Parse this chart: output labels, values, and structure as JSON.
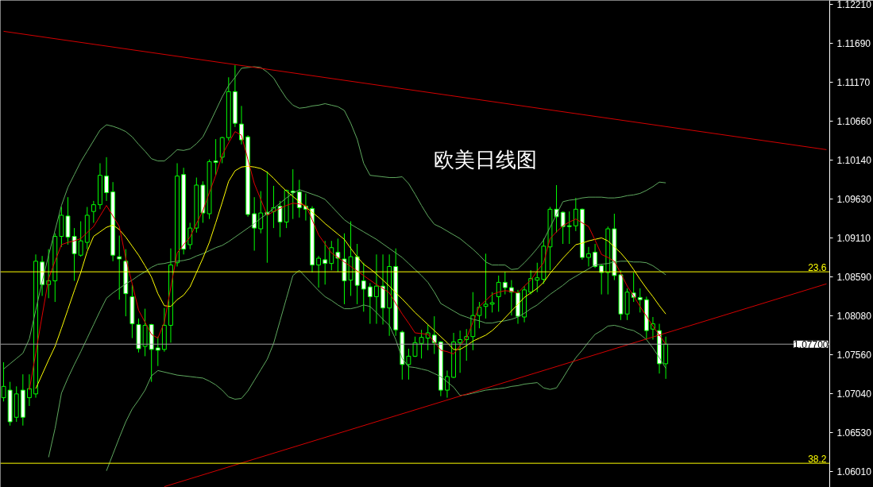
{
  "chart_data": {
    "type": "candlestick",
    "title": "欧美日线图",
    "color": "#00ff00",
    "categories": [
      null,
      null,
      null,
      null,
      null,
      null,
      null,
      null,
      null,
      null,
      null,
      null,
      null,
      null,
      null,
      null,
      null,
      null,
      null,
      null,
      null,
      null,
      null,
      null,
      null,
      null,
      null,
      null,
      null,
      null,
      null,
      null,
      null,
      null,
      null,
      null,
      null,
      null,
      null,
      null,
      null,
      null,
      null,
      null,
      null,
      null,
      null,
      null,
      null,
      null,
      null,
      null,
      null,
      null,
      null,
      null,
      null,
      null,
      null,
      null,
      null,
      null,
      null,
      null,
      null,
      null,
      null,
      null,
      null,
      null,
      null,
      null,
      null,
      null,
      null,
      null,
      null,
      null,
      null,
      null,
      null,
      null,
      null,
      null,
      null,
      null,
      null,
      null,
      null,
      null,
      null,
      null,
      null,
      null,
      null,
      null,
      null,
      null,
      null,
      null,
      null,
      null,
      null,
      null,
      null,
      null,
      null,
      null,
      null,
      null,
      null,
      null,
      null,
      null,
      null,
      null,
      null,
      null,
      null,
      null,
      null,
      null,
      null,
      null,
      null,
      null,
      null,
      null,
      null
    ],
    "ohlc": [
      [
        1.0699,
        1.0746,
        1.0694,
        1.0714
      ],
      [
        1.0709,
        1.072,
        1.0662,
        1.0667
      ],
      [
        1.0673,
        1.0714,
        1.0667,
        1.0704
      ],
      [
        1.0709,
        1.073,
        1.0662,
        1.0673
      ],
      [
        1.0699,
        1.073,
        1.0688,
        1.0711
      ],
      [
        1.0704,
        1.0889,
        1.0699,
        1.088
      ],
      [
        1.0879,
        1.0887,
        1.0834,
        1.0849
      ],
      [
        1.0849,
        1.0896,
        1.0831,
        1.0854
      ],
      [
        1.0854,
        1.0917,
        1.0826,
        1.0913
      ],
      [
        1.0913,
        1.0952,
        1.0899,
        1.0941
      ],
      [
        1.094,
        1.0965,
        1.0902,
        1.0912
      ],
      [
        1.0913,
        1.0924,
        1.0854,
        1.089
      ],
      [
        1.0888,
        1.0933,
        1.0886,
        1.0907
      ],
      [
        1.0905,
        1.0952,
        1.0896,
        1.0941
      ],
      [
        1.0946,
        1.096,
        1.0931,
        1.0955
      ],
      [
        1.0955,
        1.101,
        1.0949,
        1.0994
      ],
      [
        1.0993,
        1.1018,
        1.096,
        1.0971
      ],
      [
        1.0972,
        1.0985,
        1.088,
        1.0888
      ],
      [
        1.0886,
        1.0914,
        1.0829,
        1.0883
      ],
      [
        1.088,
        1.0896,
        1.0807,
        1.0837
      ],
      [
        1.0833,
        1.0849,
        1.0778,
        1.0797
      ],
      [
        1.0796,
        1.0804,
        1.0759,
        1.0764
      ],
      [
        1.0767,
        1.0817,
        1.0754,
        1.0795
      ],
      [
        1.0796,
        1.0797,
        1.072,
        1.0763
      ],
      [
        1.0765,
        1.078,
        1.0741,
        1.0762
      ],
      [
        1.0763,
        1.0818,
        1.076,
        1.0795
      ],
      [
        1.0795,
        1.0897,
        1.0772,
        1.0875
      ],
      [
        1.0878,
        1.101,
        1.0873,
        1.0993
      ],
      [
        1.0995,
        1.1004,
        1.0889,
        1.0896
      ],
      [
        1.0902,
        1.0931,
        1.0896,
        1.0924
      ],
      [
        1.0924,
        1.0991,
        1.0918,
        1.0981
      ],
      [
        1.0981,
        1.0986,
        1.0931,
        1.0944
      ],
      [
        1.0943,
        1.1015,
        1.0936,
        1.1012
      ],
      [
        1.1013,
        1.1042,
        1.0994,
        1.1011
      ],
      [
        1.1018,
        1.1045,
        1.101,
        1.1044
      ],
      [
        1.1044,
        1.1124,
        1.104,
        1.1105
      ],
      [
        1.1105,
        1.114,
        1.1058,
        1.1063
      ],
      [
        1.1062,
        1.1086,
        1.1035,
        1.1041
      ],
      [
        1.1045,
        1.1047,
        1.0939,
        1.0942
      ],
      [
        1.0943,
        1.0965,
        1.0894,
        1.0924
      ],
      [
        1.0923,
        1.0973,
        1.0917,
        1.0944
      ],
      [
        1.0945,
        1.0999,
        1.0878,
        1.0942
      ],
      [
        1.0946,
        1.098,
        1.0924,
        1.0951
      ],
      [
        1.0953,
        1.096,
        1.0912,
        1.0932
      ],
      [
        1.0932,
        1.0975,
        1.0924,
        1.0974
      ],
      [
        1.0973,
        1.1002,
        1.0936,
        1.0971
      ],
      [
        1.0972,
        1.0988,
        1.0938,
        1.0951
      ],
      [
        1.0953,
        1.097,
        1.0934,
        1.0949
      ],
      [
        1.095,
        1.0953,
        1.0865,
        1.0875
      ],
      [
        1.0875,
        1.0887,
        1.0845,
        1.0884
      ],
      [
        1.0882,
        1.0907,
        1.0849,
        1.0877
      ],
      [
        1.0877,
        1.0907,
        1.0868,
        1.0898
      ],
      [
        1.0892,
        1.091,
        1.0866,
        1.0884
      ],
      [
        1.0883,
        1.0917,
        1.0823,
        1.0854
      ],
      [
        1.0855,
        1.0933,
        1.0834,
        1.0886
      ],
      [
        1.0886,
        1.0903,
        1.0823,
        1.0848
      ],
      [
        1.0854,
        1.0878,
        1.0813,
        1.0843
      ],
      [
        1.0846,
        1.0851,
        1.0797,
        1.0833
      ],
      [
        1.0833,
        1.0889,
        1.0797,
        1.0847
      ],
      [
        1.0847,
        1.0889,
        1.0796,
        1.0818
      ],
      [
        1.0818,
        1.0889,
        1.0781,
        1.0873
      ],
      [
        1.0873,
        1.0897,
        1.0781,
        1.0789
      ],
      [
        1.0786,
        1.0788,
        1.0723,
        1.0743
      ],
      [
        1.0743,
        1.0764,
        1.0723,
        1.0754
      ],
      [
        1.0754,
        1.078,
        1.0753,
        1.0772
      ],
      [
        1.0771,
        1.0789,
        1.0751,
        1.0779
      ],
      [
        1.0778,
        1.0796,
        1.0762,
        1.0785
      ],
      [
        1.0782,
        1.0807,
        1.0757,
        1.0772
      ],
      [
        1.0773,
        1.0774,
        1.0701,
        1.0709
      ],
      [
        1.0709,
        1.0735,
        1.0699,
        1.0727
      ],
      [
        1.0726,
        1.0785,
        1.0725,
        1.0773
      ],
      [
        1.0772,
        1.0788,
        1.0732,
        1.0776
      ],
      [
        1.0776,
        1.079,
        1.0748,
        1.078
      ],
      [
        1.078,
        1.0839,
        1.0762,
        1.0808
      ],
      [
        1.0808,
        1.0826,
        1.0791,
        1.0819
      ],
      [
        1.082,
        1.089,
        1.0804,
        1.0823
      ],
      [
        1.0823,
        1.0839,
        1.0812,
        1.0825
      ],
      [
        1.0833,
        1.0861,
        1.0813,
        1.0852
      ],
      [
        1.0852,
        1.0866,
        1.0836,
        1.0845
      ],
      [
        1.0845,
        1.0855,
        1.0808,
        1.0839
      ],
      [
        1.0838,
        1.0842,
        1.0797,
        1.0807
      ],
      [
        1.0806,
        1.0847,
        1.0799,
        1.0842
      ],
      [
        1.0839,
        1.0868,
        1.0836,
        1.0857
      ],
      [
        1.0855,
        1.0878,
        1.0839,
        1.0858
      ],
      [
        1.0856,
        1.091,
        1.085,
        1.09
      ],
      [
        1.0899,
        1.0952,
        1.0868,
        1.0949
      ],
      [
        1.0949,
        1.0981,
        1.0918,
        1.0939
      ],
      [
        1.0945,
        1.0946,
        1.0903,
        1.0926
      ],
      [
        1.0927,
        1.0946,
        1.0903,
        1.0926
      ],
      [
        1.0927,
        1.0964,
        1.092,
        1.0949
      ],
      [
        1.0949,
        1.095,
        1.0882,
        1.0885
      ],
      [
        1.0885,
        1.0899,
        1.0873,
        1.089
      ],
      [
        1.0892,
        1.0903,
        1.0871,
        1.0873
      ],
      [
        1.0874,
        1.0876,
        1.0836,
        1.0865
      ],
      [
        1.0865,
        1.0926,
        1.0836,
        1.0923
      ],
      [
        1.0923,
        1.0943,
        1.0855,
        1.0861
      ],
      [
        1.0862,
        1.0868,
        1.0802,
        1.081
      ],
      [
        1.081,
        1.0844,
        1.0802,
        1.0839
      ],
      [
        1.0838,
        1.0865,
        1.0826,
        1.0832
      ],
      [
        1.0832,
        1.0844,
        1.0812,
        1.0829
      ],
      [
        1.0829,
        1.0833,
        1.0776,
        1.0788
      ],
      [
        1.079,
        1.0806,
        1.0776,
        1.0797
      ],
      [
        1.0788,
        1.0797,
        1.0731,
        1.0744
      ],
      [
        1.0744,
        1.078,
        1.0724,
        1.077
      ],
      null,
      null,
      null,
      null,
      null,
      null,
      null,
      null,
      null,
      null,
      null,
      null,
      null,
      null,
      null,
      null,
      null,
      null,
      null,
      null,
      null,
      null,
      null,
      null,
      null
    ],
    "series": [
      {
        "type": "line",
        "color": "#5fa85f",
        "values": [
          1.0737,
          1.0744,
          1.0751,
          1.0758,
          1.0777,
          1.0815,
          1.0853,
          1.0888,
          1.0921,
          1.0954,
          1.0978,
          1.0995,
          1.1012,
          1.1026,
          1.104,
          1.1054,
          1.1061,
          1.1059,
          1.1056,
          1.1052,
          1.1045,
          1.1035,
          1.1026,
          1.1016,
          1.1013,
          1.1013,
          1.102,
          1.1028,
          1.1027,
          1.1029,
          1.1036,
          1.1045,
          1.1062,
          1.108,
          1.1098,
          1.1113,
          1.1124,
          1.1136,
          1.1137,
          1.1138,
          1.1137,
          1.1131,
          1.1123,
          1.1109,
          1.1096,
          1.1087,
          1.1083,
          1.1084,
          1.1086,
          1.1087,
          1.1089,
          1.1087,
          1.1085,
          1.108,
          1.1063,
          1.1042,
          1.101,
          1.0994,
          1.0993,
          1.0992,
          1.0991,
          1.0991,
          1.0992,
          1.0983,
          1.0969,
          1.0954,
          1.094,
          1.0929,
          1.0925,
          1.092,
          1.0915,
          1.091,
          1.0903,
          1.0896,
          1.0888,
          1.0879,
          1.0875,
          1.0875,
          1.0875,
          1.0869,
          1.087,
          1.0878,
          1.0887,
          1.0897,
          1.0908,
          1.0925,
          1.0942,
          1.0959,
          1.0961,
          1.0962,
          1.0964,
          1.0965,
          1.0965,
          1.0965,
          1.0964,
          1.0964,
          1.0965,
          1.0967,
          1.0968,
          1.097,
          1.0974,
          1.0979,
          1.0985,
          1.0984,
          null,
          null,
          null,
          null,
          null,
          null,
          null,
          null,
          null,
          null,
          null,
          null,
          null,
          null,
          null,
          null,
          null,
          null,
          null,
          null,
          null,
          null,
          null,
          null,
          null
        ]
      },
      {
        "type": "line",
        "color": "#5fa85f",
        "values": [
          null,
          null,
          null,
          null,
          null,
          null,
          null,
          1.062,
          1.0658,
          1.0705,
          1.0725,
          1.0743,
          1.076,
          1.0778,
          1.0796,
          1.0814,
          1.0831,
          1.0838,
          1.0844,
          1.085,
          1.0855,
          1.0861,
          1.0866,
          1.0872,
          1.0876,
          1.0877,
          1.0879,
          1.088,
          1.0881,
          1.0883,
          1.0887,
          1.089,
          1.0894,
          1.0898,
          1.0901,
          1.0906,
          1.0912,
          1.0918,
          1.0924,
          1.093,
          1.0937,
          1.0943,
          1.095,
          1.0957,
          1.0964,
          1.097,
          1.0975,
          1.0972,
          1.0969,
          1.0966,
          1.0962,
          1.0953,
          1.0944,
          1.0935,
          1.0929,
          1.0924,
          1.0919,
          1.0914,
          1.0909,
          1.0903,
          1.0897,
          1.0891,
          1.0885,
          1.0877,
          1.0869,
          1.0861,
          1.0852,
          1.0839,
          1.0824,
          1.0819,
          1.0814,
          1.0809,
          1.0806,
          1.0803,
          1.0801,
          1.0798,
          1.0798,
          1.08,
          1.0801,
          1.0803,
          1.0806,
          1.0811,
          1.0817,
          1.0822,
          1.0829,
          1.0836,
          1.0842,
          1.0848,
          1.0855,
          1.086,
          1.0865,
          1.087,
          1.0875,
          1.0876,
          1.0877,
          1.0879,
          1.088,
          1.088,
          1.0879,
          1.0879,
          1.0878,
          1.0874,
          1.0868,
          1.0862,
          null,
          null,
          null,
          null,
          null,
          null,
          null,
          null,
          null,
          null,
          null,
          null,
          null,
          null,
          null,
          null,
          null,
          null,
          null,
          null,
          null,
          null,
          null,
          null,
          null
        ]
      },
      {
        "type": "line",
        "color": "#5fa85f",
        "values": [
          null,
          null,
          null,
          null,
          null,
          null,
          null,
          null,
          null,
          null,
          null,
          null,
          null,
          null,
          null,
          null,
          1.0602,
          1.0624,
          1.0646,
          1.0667,
          1.0684,
          1.0696,
          1.0709,
          1.0728,
          1.0735,
          1.0733,
          1.0731,
          1.0729,
          1.0728,
          1.0727,
          1.0726,
          1.0725,
          1.0721,
          1.0716,
          1.0709,
          1.07,
          1.0697,
          1.0698,
          1.0708,
          1.0722,
          1.0736,
          1.075,
          1.0771,
          1.0801,
          1.0831,
          1.0861,
          1.0868,
          1.0859,
          1.085,
          1.0841,
          1.0833,
          1.0828,
          1.0822,
          1.0817,
          1.0817,
          1.0819,
          1.0822,
          1.082,
          1.0812,
          1.0803,
          1.0795,
          1.0776,
          1.0751,
          1.074,
          1.0739,
          1.0737,
          1.0735,
          1.0731,
          1.0727,
          1.072,
          1.0713,
          1.0702,
          1.0703,
          1.0705,
          1.0707,
          1.0709,
          1.071,
          1.0711,
          1.0712,
          1.0714,
          1.0715,
          1.0717,
          1.0718,
          1.0719,
          1.0712,
          1.071,
          1.0712,
          1.0725,
          1.0739,
          1.0752,
          1.0762,
          1.0773,
          1.0783,
          1.0788,
          1.0794,
          1.0795,
          1.0793,
          1.079,
          1.0788,
          1.0783,
          1.0776,
          1.0765,
          1.0752,
          1.0738,
          null,
          null,
          null,
          null,
          null,
          null,
          null,
          null,
          null,
          null,
          null,
          null,
          null,
          null,
          null,
          null,
          null,
          null,
          null,
          null,
          null,
          null,
          null,
          null,
          null
        ]
      },
      {
        "type": "line",
        "color": "#ffff00",
        "values": [
          null,
          null,
          null,
          null,
          null,
          1.0711,
          1.073,
          1.0749,
          1.0767,
          1.0791,
          1.0816,
          1.0841,
          1.0865,
          1.0893,
          1.0913,
          1.0919,
          1.0925,
          1.0928,
          1.0922,
          1.0912,
          1.09,
          1.0888,
          1.0874,
          1.0859,
          1.0837,
          1.0821,
          1.082,
          1.0829,
          1.0835,
          1.0846,
          1.0865,
          1.0884,
          1.0905,
          1.0931,
          1.0958,
          1.0986,
          1.1,
          1.1005,
          1.1006,
          1.1005,
          1.1003,
          1.0998,
          1.099,
          1.0981,
          1.0973,
          1.0966,
          1.0959,
          1.0952,
          1.0945,
          1.0938,
          1.093,
          1.0923,
          1.0916,
          1.0909,
          1.0897,
          1.0886,
          1.0876,
          1.087,
          1.0863,
          1.0855,
          1.0847,
          1.0838,
          1.083,
          1.0821,
          1.0812,
          1.0804,
          1.0796,
          1.0788,
          1.078,
          1.0772,
          1.0763,
          1.0763,
          1.0768,
          1.0774,
          1.0778,
          1.0782,
          1.0788,
          1.0796,
          1.0805,
          1.0814,
          1.0823,
          1.0832,
          1.0838,
          1.0844,
          1.0852,
          1.0864,
          1.0874,
          1.0884,
          1.0893,
          1.0902,
          1.0904,
          1.0907,
          1.0909,
          1.0911,
          1.0907,
          1.0899,
          1.0891,
          1.0881,
          1.0869,
          1.0856,
          1.0844,
          1.0833,
          1.0821,
          1.081,
          null,
          null,
          null,
          null,
          null,
          null,
          null,
          null,
          null,
          null,
          null,
          null,
          null,
          null,
          null,
          null,
          null,
          null,
          null,
          null,
          null,
          null,
          null,
          null,
          null
        ]
      },
      {
        "type": "line",
        "color": "#e00000",
        "values": [
          null,
          null,
          null,
          null,
          1.0709,
          1.0758,
          1.0808,
          1.0857,
          1.088,
          1.0902,
          1.0905,
          1.0907,
          1.091,
          1.0918,
          1.0926,
          1.094,
          1.0954,
          1.094,
          1.0926,
          1.0884,
          1.085,
          1.0815,
          1.0799,
          1.0783,
          1.0778,
          1.0799,
          1.0845,
          1.0891,
          1.0902,
          1.0912,
          1.093,
          1.0947,
          1.0971,
          1.0994,
          1.1021,
          1.1037,
          1.1052,
          1.1047,
          1.1015,
          1.0983,
          1.0962,
          1.0941,
          1.0946,
          1.095,
          1.0954,
          1.0957,
          1.0956,
          1.0954,
          1.0935,
          1.0915,
          1.0903,
          1.0891,
          1.0885,
          1.0879,
          1.0873,
          1.0867,
          1.0861,
          1.0855,
          1.0849,
          1.0844,
          1.0838,
          1.0824,
          1.081,
          1.0798,
          1.0785,
          1.0784,
          1.0783,
          1.0773,
          1.0762,
          1.076,
          1.0757,
          1.0768,
          1.0778,
          1.0799,
          1.082,
          1.0828,
          1.0836,
          1.0839,
          1.0841,
          1.084,
          1.0838,
          1.0847,
          1.0855,
          1.0867,
          1.0878,
          1.091,
          1.0919,
          1.0927,
          1.0932,
          1.0936,
          1.0931,
          1.0926,
          1.0908,
          1.0889,
          1.0885,
          1.088,
          1.0864,
          1.0847,
          1.0834,
          1.082,
          1.0807,
          1.0794,
          1.0782,
          1.077,
          null,
          null,
          null,
          null,
          null,
          null,
          null,
          null,
          null,
          null,
          null,
          null,
          null,
          null,
          null,
          null,
          null,
          null,
          null,
          null,
          null,
          null,
          null,
          null,
          null
        ]
      },
      {
        "type": "line",
        "color": "#d40000",
        "values": [
          1.1185,
          null,
          null,
          null,
          null,
          null,
          null,
          null,
          null,
          null,
          null,
          null,
          null,
          null,
          null,
          null,
          null,
          null,
          null,
          null,
          null,
          null,
          null,
          null,
          null,
          null,
          null,
          null,
          null,
          null,
          null,
          null,
          null,
          null,
          null,
          null,
          null,
          null,
          null,
          null,
          null,
          null,
          null,
          null,
          null,
          null,
          null,
          null,
          null,
          null,
          null,
          null,
          null,
          null,
          null,
          null,
          null,
          null,
          null,
          null,
          null,
          null,
          null,
          null,
          null,
          null,
          null,
          null,
          null,
          null,
          null,
          null,
          null,
          null,
          null,
          null,
          null,
          null,
          null,
          null,
          null,
          null,
          null,
          null,
          null,
          null,
          null,
          null,
          null,
          null,
          null,
          null,
          null,
          null,
          null,
          null,
          null,
          null,
          null,
          null,
          null,
          null,
          null,
          null,
          null,
          null,
          null,
          null,
          null,
          null,
          null,
          null,
          null,
          null,
          null,
          null,
          null,
          null,
          null,
          null,
          null,
          null,
          null,
          null,
          null,
          null,
          null,
          null,
          1.1028
        ]
      },
      {
        "type": "line",
        "color": "#d40000",
        "values": [
          null,
          null,
          null,
          null,
          null,
          null,
          null,
          null,
          null,
          null,
          null,
          null,
          null,
          null,
          null,
          null,
          null,
          null,
          null,
          null,
          null,
          null,
          null,
          null,
          null,
          1.0581,
          null,
          null,
          null,
          null,
          null,
          null,
          null,
          null,
          null,
          null,
          null,
          null,
          null,
          null,
          null,
          null,
          null,
          null,
          null,
          null,
          null,
          null,
          null,
          null,
          null,
          null,
          null,
          null,
          null,
          null,
          null,
          null,
          null,
          null,
          null,
          null,
          null,
          null,
          null,
          null,
          null,
          null,
          null,
          null,
          null,
          null,
          null,
          null,
          null,
          null,
          null,
          null,
          null,
          null,
          null,
          null,
          null,
          null,
          null,
          null,
          null,
          null,
          null,
          null,
          null,
          null,
          null,
          null,
          null,
          null,
          null,
          null,
          null,
          null,
          null,
          null,
          null,
          null,
          null,
          null,
          null,
          null,
          null,
          null,
          null,
          null,
          null,
          null,
          null,
          null,
          null,
          null,
          null,
          null,
          null,
          null,
          null,
          null,
          null,
          null,
          null,
          null,
          1.085
        ]
      }
    ],
    "ref_lines": [
      {
        "axis": "y",
        "value": 1.0866,
        "color": "#ffff00"
      },
      {
        "axis": "y",
        "value": 1.0612,
        "color": "#ffff00"
      },
      {
        "axis": "y",
        "value": 1.077,
        "label": "1.07700",
        "color": "#a0a0a0"
      }
    ],
    "annotations": [
      {
        "text": "23.6",
        "y": 1.0866
      },
      {
        "text": "38.2",
        "y": 1.0612
      }
    ],
    "ylim": [
      1.058,
      1.1226
    ],
    "yticks": [
      {
        "value": 1.1221,
        "label": "1.12210"
      },
      {
        "value": 1.1169,
        "label": "1.11690"
      },
      {
        "value": 1.1117,
        "label": "1.11170"
      },
      {
        "value": 1.1066,
        "label": "1.10660"
      },
      {
        "value": 1.1014,
        "label": "1.10140"
      },
      {
        "value": 1.0963,
        "label": "1.09630"
      },
      {
        "value": 1.0911,
        "label": "1.09110"
      },
      {
        "value": 1.0859,
        "label": "1.08590"
      },
      {
        "value": 1.0808,
        "label": "1.08080"
      },
      {
        "value": 1.0756,
        "label": "1.07560"
      },
      {
        "value": 1.0704,
        "label": "1.07040"
      },
      {
        "value": 1.0653,
        "label": "1.06530"
      },
      {
        "value": 1.0601,
        "label": "1.06010"
      }
    ],
    "tick_labels": "y"
  }
}
